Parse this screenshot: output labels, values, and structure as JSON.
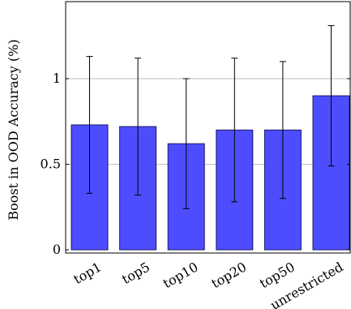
{
  "chart_data": {
    "type": "bar",
    "title": "",
    "xlabel": "",
    "ylabel": "Boost in OOD Accuracy (%)",
    "categories": [
      "top1",
      "top5",
      "top10",
      "top20",
      "top50",
      "unrestricted"
    ],
    "values": [
      0.73,
      0.72,
      0.62,
      0.7,
      0.7,
      0.9
    ],
    "error_low": [
      0.33,
      0.32,
      0.24,
      0.28,
      0.3,
      0.49
    ],
    "error_high": [
      1.13,
      1.12,
      1.0,
      1.12,
      1.1,
      1.31
    ],
    "ylim": [
      0,
      1.4
    ],
    "yticks": [
      0,
      0.5,
      1
    ],
    "ytick_labels": [
      "0",
      "0.5",
      "1"
    ],
    "grid": "horizontal",
    "bar_color": "#4d4dff",
    "bar_edge_color": "#1a1a66"
  }
}
